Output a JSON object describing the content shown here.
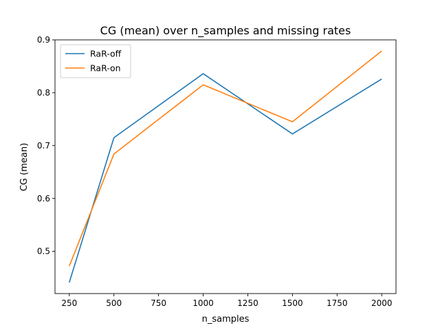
{
  "chart_data": {
    "type": "line",
    "title": "CG (mean) over n_samples and missing rates",
    "xlabel": "n_samples",
    "ylabel": "CG (mean)",
    "x": [
      250,
      500,
      1000,
      1500,
      2000
    ],
    "xlim": [
      170,
      2080
    ],
    "ylim": [
      0.42,
      0.9
    ],
    "xticks": [
      250,
      500,
      750,
      1000,
      1250,
      1500,
      1750,
      2000
    ],
    "yticks": [
      0.5,
      0.6,
      0.7,
      0.8,
      0.9
    ],
    "grid": false,
    "legend": "top-left",
    "series": [
      {
        "name": "RaR-off",
        "color": "#1f77b4",
        "values": [
          0.441,
          0.715,
          0.836,
          0.722,
          0.826
        ]
      },
      {
        "name": "RaR-on",
        "color": "#ff7f0e",
        "values": [
          0.472,
          0.684,
          0.815,
          0.745,
          0.879
        ]
      }
    ]
  }
}
